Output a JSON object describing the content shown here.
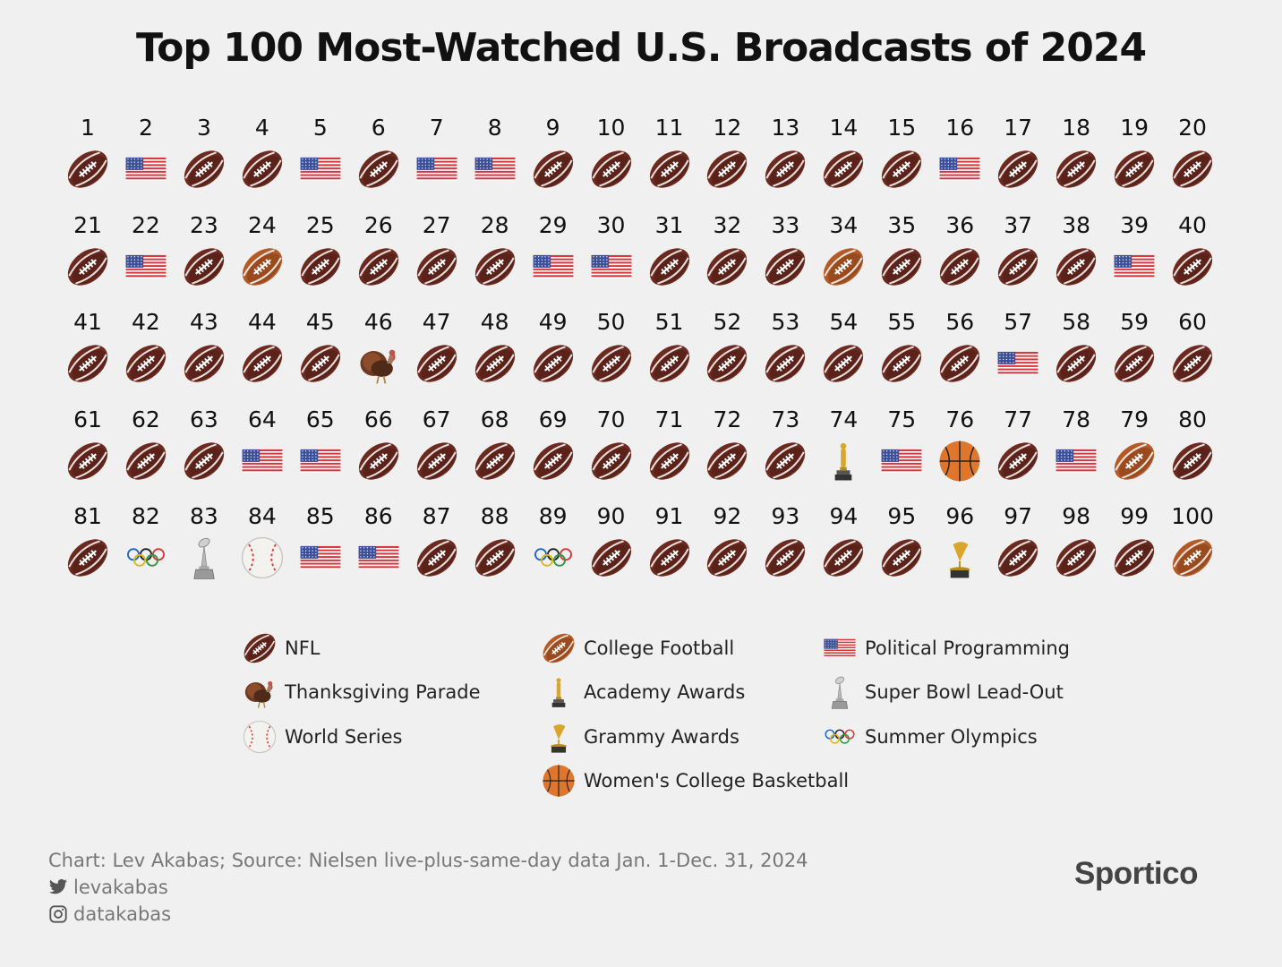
{
  "title": "Top 100 Most-Watched U.S. Broadcasts of 2024",
  "chart_data": {
    "type": "table",
    "ranks": [
      1,
      2,
      3,
      4,
      5,
      6,
      7,
      8,
      9,
      10,
      11,
      12,
      13,
      14,
      15,
      16,
      17,
      18,
      19,
      20,
      21,
      22,
      23,
      24,
      25,
      26,
      27,
      28,
      29,
      30,
      31,
      32,
      33,
      34,
      35,
      36,
      37,
      38,
      39,
      40,
      41,
      42,
      43,
      44,
      45,
      46,
      47,
      48,
      49,
      50,
      51,
      52,
      53,
      54,
      55,
      56,
      57,
      58,
      59,
      60,
      61,
      62,
      63,
      64,
      65,
      66,
      67,
      68,
      69,
      70,
      71,
      72,
      73,
      74,
      75,
      76,
      77,
      78,
      79,
      80,
      81,
      82,
      83,
      84,
      85,
      86,
      87,
      88,
      89,
      90,
      91,
      92,
      93,
      94,
      95,
      96,
      97,
      98,
      99,
      100
    ],
    "categories": [
      "nfl",
      "political",
      "nfl",
      "nfl",
      "political",
      "nfl",
      "political",
      "political",
      "nfl",
      "nfl",
      "nfl",
      "nfl",
      "nfl",
      "nfl",
      "nfl",
      "political",
      "nfl",
      "nfl",
      "nfl",
      "nfl",
      "nfl",
      "political",
      "nfl",
      "college-football",
      "nfl",
      "nfl",
      "nfl",
      "nfl",
      "political",
      "political",
      "nfl",
      "nfl",
      "nfl",
      "college-football",
      "nfl",
      "nfl",
      "nfl",
      "nfl",
      "political",
      "nfl",
      "nfl",
      "nfl",
      "nfl",
      "nfl",
      "nfl",
      "thanksgiving",
      "nfl",
      "nfl",
      "nfl",
      "nfl",
      "nfl",
      "nfl",
      "nfl",
      "nfl",
      "nfl",
      "nfl",
      "political",
      "nfl",
      "nfl",
      "nfl",
      "nfl",
      "nfl",
      "nfl",
      "political",
      "political",
      "nfl",
      "nfl",
      "nfl",
      "nfl",
      "nfl",
      "nfl",
      "nfl",
      "nfl",
      "academy",
      "political",
      "womens-basketball",
      "nfl",
      "political",
      "college-football",
      "nfl",
      "nfl",
      "olympics",
      "superbowl-leadout",
      "world-series",
      "political",
      "political",
      "nfl",
      "nfl",
      "olympics",
      "nfl",
      "nfl",
      "nfl",
      "nfl",
      "nfl",
      "nfl",
      "grammy",
      "nfl",
      "nfl",
      "nfl",
      "college-football"
    ]
  },
  "legend": [
    {
      "key": "nfl",
      "label": "NFL",
      "icon": "nfl-football-icon"
    },
    {
      "key": "college-football",
      "label": "College Football",
      "icon": "college-football-icon"
    },
    {
      "key": "political",
      "label": "Political Programming",
      "icon": "us-flag-icon"
    },
    {
      "key": "thanksgiving",
      "label": "Thanksgiving Parade",
      "icon": "turkey-icon"
    },
    {
      "key": "academy",
      "label": "Academy Awards",
      "icon": "oscar-statuette-icon"
    },
    {
      "key": "superbowl-leadout",
      "label": "Super Bowl Lead-Out",
      "icon": "lombardi-trophy-icon"
    },
    {
      "key": "world-series",
      "label": "World Series",
      "icon": "baseball-icon"
    },
    {
      "key": "grammy",
      "label": "Grammy Awards",
      "icon": "gramophone-icon"
    },
    {
      "key": "olympics",
      "label": "Summer Olympics",
      "icon": "olympic-rings-icon"
    },
    {
      "key": "womens-basketball",
      "label": "Women's College Basketball",
      "icon": "basketball-icon"
    }
  ],
  "colors": {
    "nfl": "#6b2a1f",
    "college_football": "#b35a26",
    "flag_red": "#d8343c",
    "flag_blue": "#3b4f9a",
    "basketball": "#e0762b",
    "gold": "#d9a52b",
    "silver": "#b8b8b8",
    "background": "#f0f0f0"
  },
  "footer": {
    "credit": "Chart: Lev Akabas; Source: Nielsen live-plus-same-day data Jan. 1-Dec. 31, 2024",
    "twitter": "levakabas",
    "instagram": "datakabas",
    "brand": "Sportico"
  }
}
